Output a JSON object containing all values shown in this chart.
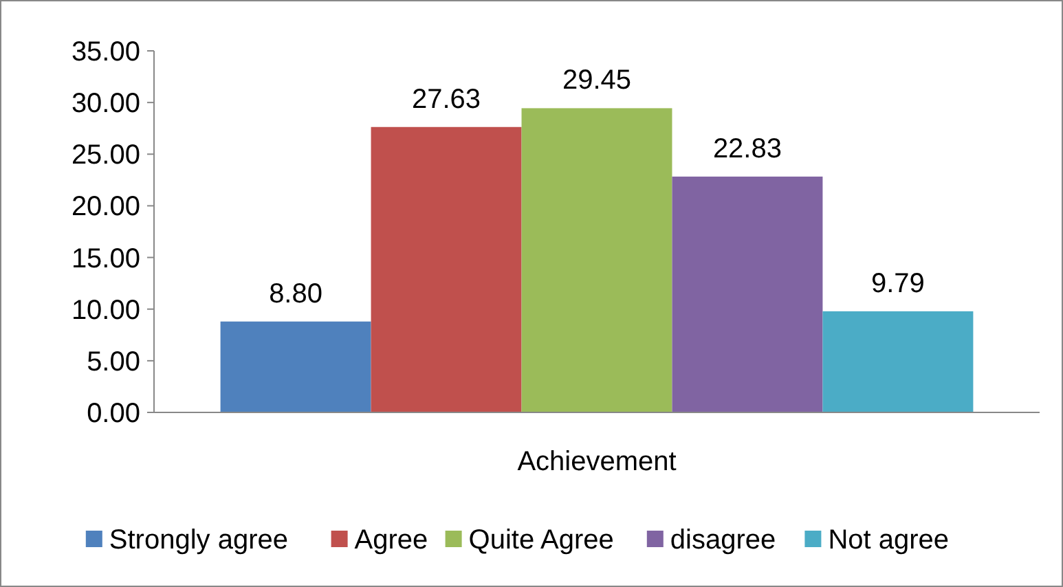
{
  "chart_data": {
    "type": "bar",
    "categories": [
      "Achievement"
    ],
    "series": [
      {
        "name": "Strongly agree",
        "color": "#4f81bd",
        "values": [
          8.8
        ],
        "value_labels": [
          "8.80"
        ]
      },
      {
        "name": "Agree",
        "color": "#c0504d",
        "values": [
          27.63
        ],
        "value_labels": [
          "27.63"
        ]
      },
      {
        "name": "Quite Agree",
        "color": "#9bbb59",
        "values": [
          29.45
        ],
        "value_labels": [
          "29.45"
        ]
      },
      {
        "name": "disagree",
        "color": "#8064a2",
        "values": [
          22.83
        ],
        "value_labels": [
          "22.83"
        ]
      },
      {
        "name": "Not agree",
        "color": "#4bacc6",
        "values": [
          9.79
        ],
        "value_labels": [
          "9.79"
        ]
      }
    ],
    "ylim": [
      0,
      35
    ],
    "yticks": [
      {
        "value": 0,
        "label": "0.00"
      },
      {
        "value": 5,
        "label": "5.00"
      },
      {
        "value": 10,
        "label": "10.00"
      },
      {
        "value": 15,
        "label": "15.00"
      },
      {
        "value": 20,
        "label": "20.00"
      },
      {
        "value": 25,
        "label": "25.00"
      },
      {
        "value": 30,
        "label": "30.00"
      },
      {
        "value": 35,
        "label": "35.00"
      }
    ],
    "grid": false,
    "legend": "bottom"
  }
}
